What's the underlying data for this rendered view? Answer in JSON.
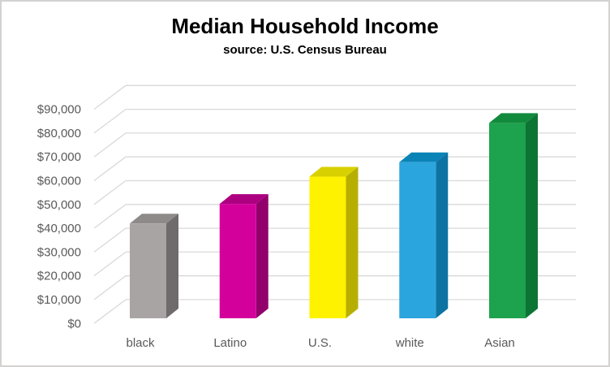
{
  "header": {
    "title": "Median Household Income",
    "subtitle": "source: U.S. Census Bureau"
  },
  "chart_data": {
    "type": "bar",
    "style": "3d-column",
    "title": "Median Household Income",
    "subtitle": "source: U.S. Census Bureau",
    "categories": [
      "black",
      "Latino",
      "U.S.",
      "white",
      "Asian"
    ],
    "values": [
      39490,
      47675,
      59039,
      65041,
      81431
    ],
    "xlabel": "",
    "ylabel": "",
    "ylim": [
      0,
      90000
    ],
    "y_tick_step": 10000,
    "y_ticks": [
      "$0",
      "$10,000",
      "$20,000",
      "$30,000",
      "$40,000",
      "$50,000",
      "$60,000",
      "$70,000",
      "$80,000",
      "$90,000"
    ],
    "grid": true,
    "legend": "none",
    "gridline_color": "#d9d9d9",
    "axis_text_color": "#595959",
    "bar_colors": [
      {
        "front": "#a9a4a4",
        "top": "#8f8a8a",
        "side": "#6f6a6b"
      },
      {
        "front": "#d4009c",
        "top": "#ac0080",
        "side": "#92006c"
      },
      {
        "front": "#fef200",
        "top": "#d8d000",
        "side": "#b7af00"
      },
      {
        "front": "#2ba5dd",
        "top": "#0a83b7",
        "side": "#0d73a3"
      },
      {
        "front": "#1da24d",
        "top": "#128a3c",
        "side": "#0d7534"
      }
    ]
  }
}
